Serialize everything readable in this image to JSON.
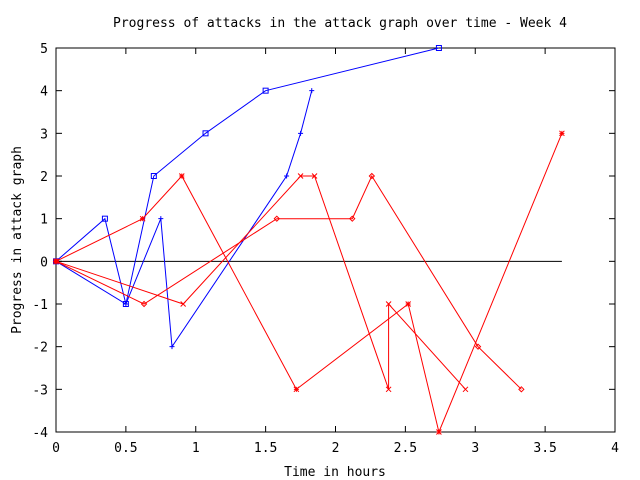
{
  "chart_data": {
    "type": "line",
    "title": "Progress of attacks in the attack graph over time - Week 4",
    "xlabel": "Time in hours",
    "ylabel": "Progress in attack graph",
    "xlim": [
      0,
      4
    ],
    "ylim": [
      -4,
      5
    ],
    "xticks": [
      "0",
      "0.5",
      "1",
      "1.5",
      "2",
      "2.5",
      "3",
      "3.5",
      "4"
    ],
    "yticks": [
      "-4",
      "-3",
      "-2",
      "-1",
      "0",
      "1",
      "2",
      "3",
      "4",
      "5"
    ],
    "grid": false,
    "legend": "none",
    "zero_line": {
      "x": [
        0,
        3.62
      ],
      "y": 0,
      "color": "#000000"
    },
    "series": [
      {
        "color": "#0000ff",
        "marker": "square",
        "x": [
          0,
          0.35,
          0.5,
          0.7,
          1.07,
          1.5,
          2.74
        ],
        "y": [
          0,
          1,
          -1,
          2,
          3,
          4,
          5
        ]
      },
      {
        "color": "#0000ff",
        "marker": "plus",
        "x": [
          0,
          0.5,
          0.75,
          0.83,
          1.65,
          1.75,
          1.83
        ],
        "y": [
          0,
          -1,
          1,
          -2,
          2,
          3,
          4
        ]
      },
      {
        "color": "#ff0000",
        "marker": "x",
        "x": [
          0,
          0.91,
          1.75,
          1.85,
          2.38,
          2.38,
          2.93
        ],
        "y": [
          0,
          -1,
          2,
          2,
          -3,
          -1,
          -3
        ]
      },
      {
        "color": "#ff0000",
        "marker": "star",
        "x": [
          0,
          0.62,
          0.9,
          1.72,
          2.52,
          2.74,
          3.62
        ],
        "y": [
          0,
          1,
          2,
          -3,
          -1,
          -4,
          3
        ]
      },
      {
        "color": "#ff0000",
        "marker": "diamond",
        "x": [
          0,
          0.63,
          1.58,
          2.12,
          2.26,
          3.02,
          3.33
        ],
        "y": [
          0,
          -1,
          1,
          1,
          2,
          -2,
          -3
        ]
      }
    ]
  }
}
